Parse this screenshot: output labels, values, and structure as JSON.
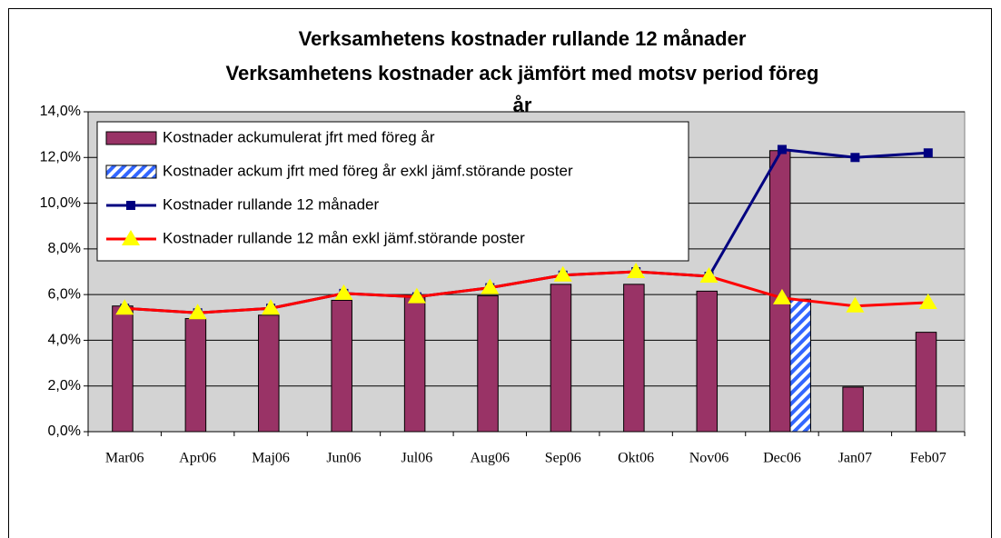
{
  "chart_data": {
    "type": "bar_line",
    "title": [
      "Verksamhetens kostnader rullande 12 månader",
      "Verksamhetens kostnader ack jämfört med motsv period föreg",
      "år"
    ],
    "categories": [
      "Mar06",
      "Apr06",
      "Maj06",
      "Jun06",
      "Jul06",
      "Aug06",
      "Sep06",
      "Okt06",
      "Nov06",
      "Dec06",
      "Jan07",
      "Feb07"
    ],
    "series": [
      {
        "name": "Kostnader ackumulerat jfrt med föreg år",
        "type": "bar",
        "color": "#993366",
        "values": [
          5.5,
          4.95,
          5.1,
          5.75,
          5.9,
          5.95,
          6.45,
          6.45,
          6.15,
          12.3,
          1.95,
          4.35
        ]
      },
      {
        "name": "Kostnader ackum jfrt med föreg år exkl jämf.störande poster",
        "type": "bar",
        "color": "#3366ff",
        "pattern": "hatched",
        "values": [
          null,
          null,
          null,
          null,
          null,
          null,
          null,
          null,
          null,
          5.8,
          null,
          null
        ]
      },
      {
        "name": "Kostnader rullande 12 månader",
        "type": "line",
        "color": "#000080",
        "marker": "square",
        "values": [
          5.4,
          5.2,
          5.4,
          6.05,
          5.9,
          6.3,
          6.85,
          7.0,
          6.8,
          12.35,
          12.0,
          12.2
        ]
      },
      {
        "name": "Kostnader rullande 12 mån exkl jämf.störande poster",
        "type": "line",
        "color": "#ff0000",
        "marker": "triangle",
        "marker_color": "#ffff00",
        "values": [
          5.4,
          5.2,
          5.4,
          6.05,
          5.9,
          6.3,
          6.85,
          7.0,
          6.8,
          5.85,
          5.5,
          5.65
        ]
      }
    ],
    "ylim": [
      0,
      14
    ],
    "yticks": [
      {
        "value": 0,
        "label": "0,0%"
      },
      {
        "value": 2,
        "label": "2,0%"
      },
      {
        "value": 4,
        "label": "4,0%"
      },
      {
        "value": 6,
        "label": "6,0%"
      },
      {
        "value": 8,
        "label": "8,0%"
      },
      {
        "value": 10,
        "label": "10,0%"
      },
      {
        "value": 12,
        "label": "12,0%"
      },
      {
        "value": 14,
        "label": "14,0%"
      }
    ],
    "grid": true,
    "legend": "upper left"
  }
}
